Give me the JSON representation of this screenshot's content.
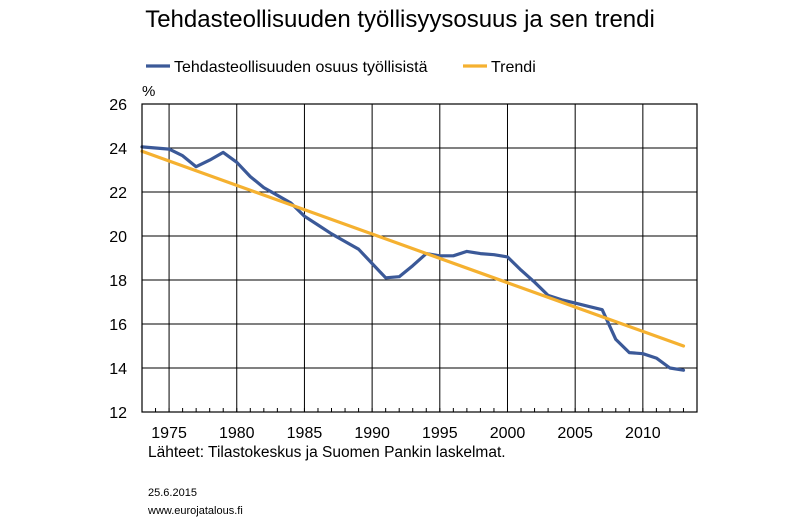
{
  "chart_data": {
    "type": "line",
    "title": "Tehdasteollisuuden työllisyysosuus ja sen trendi",
    "ylabel": "%",
    "xlabel": "",
    "ylim": [
      12,
      26
    ],
    "xlim": [
      1973,
      2014
    ],
    "yticks": [
      12,
      14,
      16,
      18,
      20,
      22,
      24,
      26
    ],
    "xticks": [
      1975,
      1980,
      1985,
      1990,
      1995,
      2000,
      2005,
      2010
    ],
    "grid": true,
    "legend_position": "top",
    "series": [
      {
        "name": "Tehdasteollisuuden osuus työllisistä",
        "color": "#3b5998",
        "x": [
          1973,
          1974,
          1975,
          1976,
          1977,
          1978,
          1979,
          1980,
          1981,
          1982,
          1983,
          1984,
          1985,
          1986,
          1987,
          1988,
          1989,
          1990,
          1991,
          1992,
          1993,
          1994,
          1995,
          1996,
          1997,
          1998,
          1999,
          2000,
          2001,
          2002,
          2003,
          2004,
          2005,
          2006,
          2007,
          2008,
          2009,
          2010,
          2011,
          2012,
          2013
        ],
        "y": [
          24.05,
          24.0,
          23.95,
          23.65,
          23.15,
          23.45,
          23.8,
          23.35,
          22.7,
          22.2,
          21.85,
          21.5,
          20.9,
          20.5,
          20.1,
          19.75,
          19.4,
          18.75,
          18.1,
          18.15,
          18.65,
          19.2,
          19.1,
          19.1,
          19.3,
          19.2,
          19.15,
          19.05,
          18.45,
          17.9,
          17.3,
          17.1,
          16.95,
          16.8,
          16.65,
          15.3,
          14.7,
          14.65,
          14.45,
          14.0,
          13.9
        ]
      },
      {
        "name": "Trendi",
        "color": "#f5b130",
        "x": [
          1973,
          2013
        ],
        "y": [
          23.85,
          15.0
        ]
      }
    ]
  },
  "notes": {
    "source": "Lähteet: Tilastokeskus ja Suomen Pankin laskelmat.",
    "date": "25.6.2015",
    "site": "www.eurojatalous.fi"
  }
}
